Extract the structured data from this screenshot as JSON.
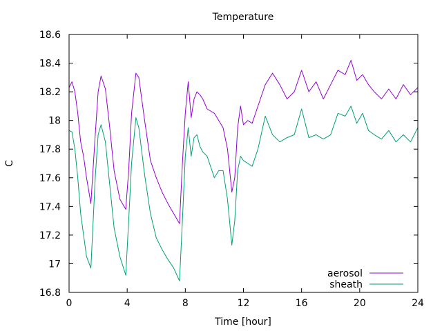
{
  "chart_data": {
    "type": "line",
    "title": "Temperature",
    "xlabel": "Time [hour]",
    "ylabel": "C",
    "xlim": [
      0,
      24
    ],
    "ylim": [
      16.8,
      18.6
    ],
    "xticks": [
      0,
      4,
      8,
      12,
      16,
      20,
      24
    ],
    "xtick_labels": [
      "0",
      "4",
      "8",
      "12",
      "16",
      "20",
      "24"
    ],
    "yticks": [
      16.8,
      17,
      17.2,
      17.4,
      17.6,
      17.8,
      18,
      18.2,
      18.4,
      18.6
    ],
    "ytick_labels": [
      "16.8",
      "17",
      "17.2",
      "17.4",
      "17.6",
      "17.8",
      "18",
      "18.2",
      "18.4",
      "18.6"
    ],
    "grid": false,
    "legend_position": "bottom-right",
    "series": [
      {
        "name": "aerosol",
        "color": "#9400d3",
        "x": [
          0,
          0.2,
          0.4,
          0.6,
          0.8,
          1.0,
          1.2,
          1.5,
          1.8,
          2.0,
          2.2,
          2.5,
          2.8,
          3.1,
          3.5,
          3.9,
          4.1,
          4.3,
          4.6,
          4.8,
          5.2,
          5.6,
          6.0,
          6.4,
          6.8,
          7.2,
          7.6,
          7.8,
          8.0,
          8.2,
          8.4,
          8.6,
          8.8,
          9.0,
          9.2,
          9.5,
          10.0,
          10.3,
          10.6,
          10.9,
          11.2,
          11.4,
          11.6,
          11.8,
          12.0,
          12.3,
          12.6,
          13.0,
          13.5,
          14.0,
          14.5,
          15.0,
          15.5,
          16.0,
          16.5,
          17.0,
          17.5,
          18.0,
          18.5,
          19.0,
          19.4,
          19.8,
          20.2,
          20.6,
          21.0,
          21.5,
          22.0,
          22.5,
          23.0,
          23.5,
          24.0
        ],
        "values": [
          18.23,
          18.27,
          18.2,
          18.05,
          17.85,
          17.75,
          17.6,
          17.42,
          17.9,
          18.2,
          18.31,
          18.22,
          17.95,
          17.65,
          17.45,
          17.38,
          17.65,
          18.05,
          18.33,
          18.3,
          18.0,
          17.72,
          17.6,
          17.5,
          17.42,
          17.35,
          17.28,
          17.7,
          18.05,
          18.27,
          18.02,
          18.15,
          18.2,
          18.18,
          18.15,
          18.08,
          18.05,
          18.0,
          17.95,
          17.8,
          17.5,
          17.6,
          17.95,
          18.1,
          17.97,
          18.0,
          17.98,
          18.1,
          18.25,
          18.33,
          18.25,
          18.15,
          18.2,
          18.35,
          18.2,
          18.27,
          18.15,
          18.25,
          18.35,
          18.32,
          18.42,
          18.28,
          18.32,
          18.25,
          18.2,
          18.15,
          18.22,
          18.15,
          18.25,
          18.18,
          18.23
        ]
      },
      {
        "name": "sheath",
        "color": "#009e73",
        "x": [
          0,
          0.2,
          0.4,
          0.6,
          0.8,
          1.0,
          1.2,
          1.5,
          1.8,
          2.0,
          2.2,
          2.5,
          2.8,
          3.1,
          3.5,
          3.9,
          4.1,
          4.3,
          4.6,
          4.8,
          5.2,
          5.6,
          6.0,
          6.4,
          6.8,
          7.2,
          7.6,
          7.8,
          8.0,
          8.2,
          8.4,
          8.6,
          8.8,
          9.0,
          9.2,
          9.5,
          10.0,
          10.3,
          10.6,
          10.9,
          11.2,
          11.4,
          11.6,
          11.8,
          12.0,
          12.3,
          12.6,
          13.0,
          13.5,
          14.0,
          14.5,
          15.0,
          15.5,
          16.0,
          16.5,
          17.0,
          17.5,
          18.0,
          18.5,
          19.0,
          19.4,
          19.8,
          20.2,
          20.6,
          21.0,
          21.5,
          22.0,
          22.5,
          23.0,
          23.5,
          24.0
        ],
        "values": [
          17.93,
          17.92,
          17.8,
          17.6,
          17.35,
          17.2,
          17.05,
          16.97,
          17.6,
          17.9,
          17.97,
          17.85,
          17.55,
          17.25,
          17.05,
          16.92,
          17.3,
          17.7,
          18.02,
          17.95,
          17.62,
          17.35,
          17.18,
          17.1,
          17.03,
          16.97,
          16.88,
          17.3,
          17.75,
          17.95,
          17.75,
          17.88,
          17.9,
          17.82,
          17.78,
          17.75,
          17.6,
          17.65,
          17.65,
          17.45,
          17.13,
          17.3,
          17.65,
          17.75,
          17.72,
          17.7,
          17.68,
          17.8,
          18.03,
          17.9,
          17.85,
          17.88,
          17.9,
          18.08,
          17.88,
          17.9,
          17.87,
          17.9,
          18.05,
          18.03,
          18.1,
          17.98,
          18.05,
          17.93,
          17.9,
          17.87,
          17.93,
          17.85,
          17.9,
          17.85,
          17.95
        ]
      }
    ]
  }
}
